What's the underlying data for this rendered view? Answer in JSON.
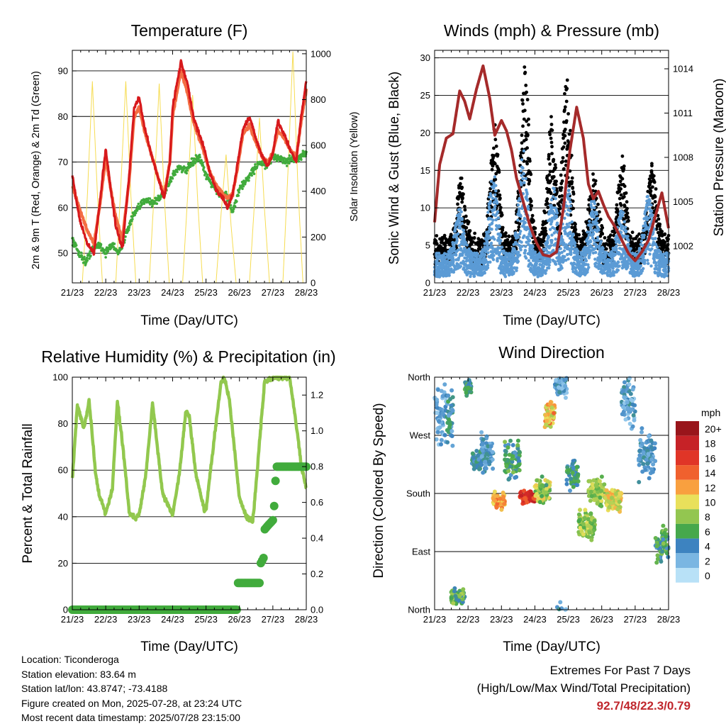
{
  "station": {
    "location": "Location: Ticonderoga",
    "elevation": "Station elevation: 83.64 m",
    "latlon": "Station lat/lon: 43.8747; -73.4188",
    "created": "Figure created on Mon, 2025-07-28, at 23:24 UTC",
    "recent": "Most recent data timestamp: 2025/07/28 23:15:00"
  },
  "extremes": {
    "title": "Extremes For Past 7 Days",
    "subtitle": "(High/Low/Max Wind/Total Precipitation)",
    "values": "92.7/48/22.3/0.79"
  },
  "chart_data": [
    {
      "id": "temperature",
      "type": "line",
      "title": "Temperature (F)",
      "xlabel": "Time (Day/UTC)",
      "ylabel": "2m & 9m T (Red, Orange) & 2m Td (Green)",
      "y2label": "Solar Insolation (Yellow)",
      "x_ticks": [
        "21/23",
        "22/23",
        "23/23",
        "24/23",
        "25/23",
        "26/23",
        "27/23",
        "28/23"
      ],
      "xlim": [
        0,
        7
      ],
      "ylim": [
        43.5,
        94.5
      ],
      "y_ticks": [
        50,
        60,
        70,
        80,
        90
      ],
      "y2lim": [
        0,
        1015
      ],
      "y2_ticks": [
        0,
        200,
        400,
        600,
        800,
        1000
      ],
      "grid": true,
      "colors": {
        "t2": "#d7191c",
        "t9": "#f46d43",
        "td": "#41ab3c",
        "solar": "#f6dc52"
      },
      "series": [
        {
          "key": "t2",
          "x": [
            0,
            0.2,
            0.45,
            0.65,
            0.85,
            1.0,
            1.15,
            1.3,
            1.5,
            1.7,
            1.85,
            2.0,
            2.15,
            2.35,
            2.55,
            2.75,
            2.92,
            3.0,
            3.1,
            3.25,
            3.45,
            3.62,
            3.8,
            3.95,
            4.1,
            4.3,
            4.5,
            4.65,
            4.8,
            4.95,
            5.1,
            5.3,
            5.5,
            5.7,
            5.85,
            6.0,
            6.15,
            6.35,
            6.5,
            6.7,
            6.85,
            7.0
          ],
          "y": [
            67,
            58,
            52,
            50,
            63,
            73,
            64,
            56,
            51,
            67,
            82,
            84,
            78,
            72,
            67,
            62,
            70,
            82,
            86,
            92,
            87,
            80,
            76,
            73,
            68,
            64,
            62,
            60,
            63,
            70,
            77,
            80,
            75,
            71,
            69,
            72,
            79,
            76,
            73,
            70,
            80,
            88
          ]
        },
        {
          "key": "t9",
          "x": [
            0,
            0.2,
            0.45,
            0.65,
            0.85,
            1.0,
            1.15,
            1.3,
            1.5,
            1.7,
            1.85,
            2.0,
            2.15,
            2.35,
            2.55,
            2.75,
            2.92,
            3.0,
            3.1,
            3.25,
            3.45,
            3.62,
            3.8,
            3.95,
            4.1,
            4.3,
            4.5,
            4.65,
            4.8,
            4.95,
            5.1,
            5.3,
            5.5,
            5.7,
            5.85,
            6.0,
            6.15,
            6.35,
            6.5,
            6.7,
            6.85,
            7.0
          ],
          "y": [
            65,
            60,
            55,
            52,
            62,
            71,
            64,
            58,
            53,
            66,
            80,
            82,
            77,
            72,
            67,
            63,
            70,
            80,
            84,
            90,
            85,
            79,
            75,
            72,
            68,
            65,
            63,
            62,
            63,
            69,
            76,
            78,
            74,
            71,
            70,
            72,
            77,
            75,
            73,
            71,
            79,
            86
          ]
        },
        {
          "key": "td",
          "x": [
            0,
            0.2,
            0.4,
            0.6,
            0.8,
            1.0,
            1.2,
            1.4,
            1.6,
            1.8,
            2.0,
            2.2,
            2.4,
            2.6,
            2.8,
            3.0,
            3.2,
            3.4,
            3.6,
            3.8,
            4.0,
            4.2,
            4.4,
            4.6,
            4.8,
            5.0,
            5.2,
            5.4,
            5.6,
            5.8,
            6.0,
            6.2,
            6.4,
            6.6,
            6.8,
            7.0
          ],
          "y": [
            53,
            50,
            48,
            51,
            52,
            50,
            52,
            50,
            54,
            58,
            60,
            62,
            61,
            62,
            64,
            67,
            69,
            68,
            70,
            71,
            67,
            65,
            63,
            63,
            59,
            64,
            66,
            68,
            70,
            69,
            71,
            71,
            70,
            71,
            71,
            72
          ]
        },
        {
          "key": "solar",
          "x": [
            0,
            0.3,
            0.45,
            0.6,
            0.75,
            0.9,
            1.3,
            1.45,
            1.6,
            1.75,
            1.9,
            2.3,
            2.45,
            2.6,
            2.75,
            2.9,
            3.3,
            3.45,
            3.6,
            3.75,
            3.9,
            4.3,
            4.45,
            4.6,
            4.75,
            4.9,
            5.3,
            5.45,
            5.6,
            5.75,
            5.9,
            6.3,
            6.45,
            6.6,
            6.75,
            6.9,
            7.0
          ],
          "y": [
            0,
            0,
            380,
            880,
            390,
            0,
            0,
            420,
            880,
            390,
            0,
            0,
            400,
            870,
            380,
            0,
            0,
            380,
            820,
            360,
            0,
            0,
            300,
            560,
            250,
            0,
            0,
            350,
            720,
            320,
            0,
            0,
            480,
            1010,
            420,
            0,
            0
          ]
        }
      ]
    },
    {
      "id": "winds",
      "type": "scatter",
      "title": "Winds (mph) & Pressure (mb)",
      "xlabel": "Time (Day/UTC)",
      "ylabel": "Sonic Wind & Gust (Blue, Black)",
      "y2label": "Station Pressure (Maroon)",
      "x_ticks": [
        "21/23",
        "22/23",
        "23/23",
        "24/23",
        "25/23",
        "26/23",
        "27/23",
        "28/23"
      ],
      "xlim": [
        0,
        7
      ],
      "ylim": [
        0,
        31
      ],
      "y_ticks": [
        0,
        5,
        10,
        15,
        20,
        25,
        30
      ],
      "y2lim": [
        999.5,
        1015.25
      ],
      "y2_ticks": [
        1002,
        1005,
        1008,
        1011,
        1014
      ],
      "grid": true,
      "colors": {
        "wind": "#5b9bd5",
        "gust": "#000000",
        "pressure": "#a52a2a"
      },
      "wind_peaks": [
        {
          "x": 0.75,
          "y": 10
        },
        {
          "x": 1.75,
          "y": 15
        },
        {
          "x": 2.65,
          "y": 18
        },
        {
          "x": 3.55,
          "y": 13
        },
        {
          "x": 3.95,
          "y": 14
        },
        {
          "x": 4.75,
          "y": 12
        },
        {
          "x": 5.6,
          "y": 10
        },
        {
          "x": 6.4,
          "y": 12
        }
      ],
      "gust_peaks": [
        {
          "x": 0.8,
          "y": 14
        },
        {
          "x": 1.8,
          "y": 21
        },
        {
          "x": 2.7,
          "y": 29
        },
        {
          "x": 3.5,
          "y": 22
        },
        {
          "x": 3.95,
          "y": 28
        },
        {
          "x": 4.75,
          "y": 15
        },
        {
          "x": 5.6,
          "y": 17
        },
        {
          "x": 6.5,
          "y": 16
        }
      ],
      "pressure": {
        "x": [
          0,
          0.15,
          0.35,
          0.55,
          0.75,
          0.9,
          1.05,
          1.25,
          1.45,
          1.65,
          1.8,
          2.0,
          2.15,
          2.3,
          2.45,
          2.65,
          2.85,
          3.05,
          3.25,
          3.45,
          3.65,
          3.85,
          4.05,
          4.25,
          4.45,
          4.6,
          4.75,
          4.9,
          5.05,
          5.2,
          5.4,
          5.6,
          5.8,
          6.0,
          6.2,
          6.4,
          6.6,
          6.8,
          7.0
        ],
        "y": [
          1003.6,
          1007.5,
          1009.3,
          1009.6,
          1012.5,
          1011.8,
          1010.6,
          1012.6,
          1014.2,
          1012.0,
          1009.5,
          1010.5,
          1009.8,
          1008.5,
          1006.6,
          1005.0,
          1003.4,
          1002.2,
          1001.4,
          1001.3,
          1001.6,
          1004.5,
          1008.5,
          1011.4,
          1009.3,
          1006.2,
          1005.2,
          1005.7,
          1004.8,
          1004.0,
          1003.3,
          1002.4,
          1001.5,
          1001.0,
          1001.6,
          1002.4,
          1004.0,
          1005.6,
          1003.2
        ]
      }
    },
    {
      "id": "humidity",
      "type": "line",
      "title": "Relative Humidity (%) & Precipitation (in)",
      "xlabel": "Time (Day/UTC)",
      "ylabel": "Percent & Total Rainfall",
      "x_ticks": [
        "21/23",
        "22/23",
        "23/23",
        "24/23",
        "25/23",
        "26/23",
        "27/23",
        "28/23"
      ],
      "xlim": [
        0,
        7
      ],
      "ylim": [
        0,
        100
      ],
      "y_ticks": [
        0,
        20,
        40,
        60,
        80,
        100
      ],
      "y2lim": [
        0,
        1.3
      ],
      "y2_ticks": [
        "0.0",
        "0.2",
        "0.4",
        "0.6",
        "0.8",
        "1.0",
        "1.2"
      ],
      "grid": true,
      "colors": {
        "rh": "#92c84e",
        "precip": "#41ab3c"
      },
      "rh": {
        "x": [
          0,
          0.15,
          0.35,
          0.5,
          0.7,
          0.8,
          1.0,
          1.2,
          1.35,
          1.55,
          1.7,
          1.9,
          2.0,
          2.2,
          2.4,
          2.5,
          2.7,
          2.95,
          3.0,
          3.2,
          3.4,
          3.5,
          3.7,
          3.95,
          4.0,
          4.2,
          4.45,
          4.55,
          4.7,
          4.95,
          5.0,
          5.2,
          5.4,
          5.55,
          5.75,
          5.95,
          6.05,
          6.25,
          6.5,
          6.7,
          6.85,
          7.0
        ],
        "y": [
          56,
          88,
          78,
          90,
          58,
          50,
          41,
          52,
          90,
          65,
          42,
          39,
          41,
          58,
          89,
          76,
          50,
          42,
          41,
          58,
          86,
          83,
          58,
          43,
          43,
          68,
          98,
          100,
          90,
          55,
          48,
          40,
          38,
          63,
          98,
          99,
          100,
          100,
          100,
          80,
          62,
          52
        ]
      },
      "precip": {
        "x": [
          0,
          4.95,
          4.96,
          5.1,
          5.45,
          5.6,
          5.61,
          5.75,
          5.76,
          5.85,
          6.0,
          6.05,
          6.1,
          7.0
        ],
        "y": [
          0,
          0,
          0.15,
          0.15,
          0.15,
          0.15,
          0.25,
          0.3,
          0.45,
          0.47,
          0.5,
          0.6,
          0.8,
          0.8
        ]
      }
    },
    {
      "id": "direction",
      "type": "scatter",
      "title": "Wind Direction",
      "xlabel": "Time (Day/UTC)",
      "ylabel": "Direction (Colored By Speed)",
      "x_ticks": [
        "21/23",
        "22/23",
        "23/23",
        "24/23",
        "25/23",
        "26/23",
        "27/23",
        "28/23"
      ],
      "xlim": [
        0,
        7
      ],
      "ylim": [
        0,
        360
      ],
      "y_ticks": [
        "North",
        "East",
        "South",
        "West",
        "North"
      ],
      "legend_title": "mph",
      "legend_labels": [
        "20+",
        "18",
        "16",
        "14",
        "12",
        "10",
        "8",
        "6",
        "4",
        "2",
        "0"
      ],
      "legend_colors": [
        "#99151b",
        "#c62227",
        "#e03527",
        "#f0612e",
        "#f9a03f",
        "#e9e05b",
        "#93c650",
        "#46a84c",
        "#3d83c0",
        "#7ab6e2",
        "#b8e1f7"
      ],
      "legend_placement": "right",
      "clusters": [
        {
          "x0": 0.0,
          "x1": 0.35,
          "dir": 300,
          "spread": 60,
          "speed": [
            1,
            4
          ]
        },
        {
          "x0": 0.35,
          "x1": 0.55,
          "dir": 300,
          "spread": 60,
          "speed": [
            2,
            6
          ]
        },
        {
          "x0": 0.5,
          "x1": 0.9,
          "dir": 20,
          "spread": 15,
          "speed": [
            4,
            9
          ]
        },
        {
          "x0": 0.9,
          "x1": 1.1,
          "dir": 345,
          "spread": 15,
          "speed": [
            3,
            7
          ]
        },
        {
          "x0": 1.1,
          "x1": 1.4,
          "dir": 230,
          "spread": 20,
          "speed": [
            3,
            6
          ]
        },
        {
          "x0": 1.4,
          "x1": 1.75,
          "dir": 240,
          "spread": 50,
          "speed": [
            2,
            5
          ]
        },
        {
          "x0": 1.75,
          "x1": 2.1,
          "dir": 170,
          "spread": 18,
          "speed": [
            10,
            14
          ]
        },
        {
          "x0": 2.1,
          "x1": 2.55,
          "dir": 230,
          "spread": 40,
          "speed": [
            3,
            8
          ]
        },
        {
          "x0": 2.55,
          "x1": 3.0,
          "dir": 175,
          "spread": 12,
          "speed": [
            14,
            19
          ]
        },
        {
          "x0": 3.0,
          "x1": 3.45,
          "dir": 185,
          "spread": 25,
          "speed": [
            5,
            11
          ]
        },
        {
          "x0": 3.3,
          "x1": 3.6,
          "dir": 300,
          "spread": 30,
          "speed": [
            8,
            14
          ]
        },
        {
          "x0": 3.6,
          "x1": 3.95,
          "dir": 350,
          "spread": 30,
          "speed": [
            1,
            5
          ]
        },
        {
          "x0": 3.95,
          "x1": 4.3,
          "dir": 210,
          "spread": 30,
          "speed": [
            3,
            7
          ]
        },
        {
          "x0": 4.3,
          "x1": 4.8,
          "dir": 130,
          "spread": 30,
          "speed": [
            6,
            10
          ]
        },
        {
          "x0": 4.6,
          "x1": 5.1,
          "dir": 185,
          "spread": 30,
          "speed": [
            6,
            10
          ]
        },
        {
          "x0": 5.1,
          "x1": 5.6,
          "dir": 170,
          "spread": 20,
          "speed": [
            8,
            12
          ]
        },
        {
          "x0": 5.6,
          "x1": 6.0,
          "dir": 320,
          "spread": 45,
          "speed": [
            1,
            5
          ]
        },
        {
          "x0": 6.1,
          "x1": 6.6,
          "dir": 240,
          "spread": 50,
          "speed": [
            2,
            5
          ]
        },
        {
          "x0": 6.6,
          "x1": 7.0,
          "dir": 100,
          "spread": 35,
          "speed": [
            3,
            8
          ]
        }
      ]
    }
  ]
}
